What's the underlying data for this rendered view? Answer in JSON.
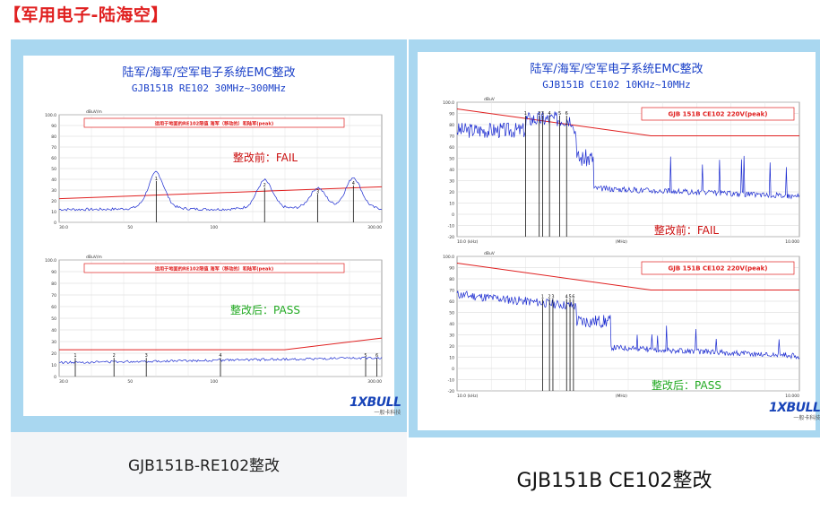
{
  "heading": "【军用电子-陆海空】",
  "left": {
    "title1": "陆军/海军/空军电子系统EMC整改",
    "title2": "GJB151B RE102 30MHz~300MHz",
    "caption": "GJB151B-RE102整改",
    "logo": "1XBULL",
    "logo_sub": "一般卡科技",
    "chart_data": [
      {
        "type": "line",
        "name": "before",
        "legend": "适用于地面的RE102限值 海军（移动的）和陆军(peak)",
        "result": "整改前：FAIL",
        "result_color": "#cc1111",
        "yunit": "dBuV/m",
        "ylim": [
          0,
          100
        ],
        "yticks": [
          0,
          10,
          20,
          30,
          40,
          50,
          60,
          70,
          80,
          90,
          100
        ],
        "xticks": [
          "30.0",
          "50",
          "100",
          "300.00"
        ],
        "limit": [
          [
            30,
            22
          ],
          [
            300,
            33
          ]
        ],
        "baseline": 12,
        "peaks": [
          [
            60,
            40
          ],
          [
            130,
            34
          ],
          [
            190,
            28
          ],
          [
            245,
            36
          ]
        ],
        "markers": [
          "1",
          "2",
          "3",
          "4"
        ]
      },
      {
        "type": "line",
        "name": "after",
        "legend": "适用于地面的RE102限值 海军（移动的）和陆军(peak)",
        "result": "整改后：PASS",
        "result_color": "#22aa22",
        "yunit": "dBuV/m",
        "ylim": [
          0,
          100
        ],
        "yticks": [
          0,
          10,
          20,
          30,
          40,
          50,
          60,
          70,
          80,
          90,
          100
        ],
        "xticks": [
          "30.0",
          "50",
          "100",
          "300.00"
        ],
        "limit": [
          [
            30,
            23
          ],
          [
            150,
            23
          ],
          [
            300,
            33
          ]
        ],
        "baseline": 12,
        "peaks": [
          [
            40,
            13
          ],
          [
            55,
            13
          ],
          [
            140,
            14
          ],
          [
            290,
            17
          ]
        ],
        "markers": [
          "1",
          "2",
          "3",
          "4",
          "5",
          "6"
        ]
      }
    ]
  },
  "right": {
    "title1": "陆军/海军/空军电子系统EMC整改",
    "title2": "GJB151B CE102 10KHz~10MHz",
    "caption": "GJB151B CE102整改",
    "logo": "1XBULL",
    "logo_sub": "一般卡科技",
    "chart_data": [
      {
        "type": "line",
        "name": "before",
        "legend": "GJB 151B CE102 220V(peak)",
        "result": "整改前：FAIL",
        "result_color": "#cc1111",
        "yunit": "dBuV",
        "ylim": [
          -20,
          100
        ],
        "yticks": [
          -20,
          -10,
          0,
          10,
          20,
          30,
          40,
          50,
          60,
          70,
          80,
          90,
          100
        ],
        "xticks": [
          "10.0 (kHz)",
          "(MHz)",
          "10.000"
        ],
        "limit": [
          [
            10,
            94
          ],
          [
            500,
            70
          ],
          [
            10000,
            70
          ]
        ],
        "markers": [
          "1",
          "2",
          "3",
          "4",
          "5",
          "6"
        ]
      },
      {
        "type": "line",
        "name": "after",
        "legend": "GJB 151B CE102 220V(peak)",
        "result": "整改后：PASS",
        "result_color": "#22aa22",
        "yunit": "dBuV",
        "ylim": [
          -20,
          100
        ],
        "yticks": [
          -20,
          -10,
          0,
          10,
          20,
          30,
          40,
          50,
          60,
          70,
          80,
          90,
          100
        ],
        "xticks": [
          "10.0 (kHz)",
          "(MHz)",
          "10.000"
        ],
        "limit": [
          [
            10,
            94
          ],
          [
            500,
            70
          ],
          [
            10000,
            70
          ]
        ],
        "markers": [
          "1",
          "2",
          "3",
          "4",
          "5",
          "6"
        ]
      }
    ]
  }
}
